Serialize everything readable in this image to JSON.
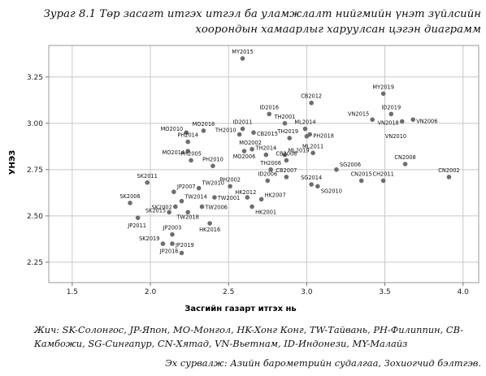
{
  "title": {
    "line1": "Зураг 8.1 Төр засагт итгэх итгэл ба уламжлалт нийгмийн үнэт зүйлсийн",
    "line2": "хоорондын хамаарлыг харуулсан цэгэн диаграмм"
  },
  "note": "Жич: SK-Солонгос, JP-Япон, MO-Монгол, HK-Хонг Конг, TW-Тайвань, PH-Филиппин, CB-Камбожи, SG-Сингапур, CN-Хятад, VN-Вьетнам, ID-Индонези, MY-Малайз",
  "source": "Эх сурвалж: Азийн барометрийн судалгаа, Зохиогчид бэлтгэв.",
  "chart_data": {
    "type": "scatter",
    "xlabel": "Засгийн газарт итгэх нь",
    "ylabel": "УНЭЗ",
    "xlim": [
      1.35,
      4.1
    ],
    "ylim": [
      2.14,
      3.42
    ],
    "xticks": [
      "1.5",
      "2.0",
      "2.5",
      "3.0",
      "3.5",
      "4.0"
    ],
    "yticks": [
      "2.25",
      "2.50",
      "2.75",
      "3.00",
      "3.25"
    ],
    "grid": true,
    "point_color": "#6e6e6e",
    "points": [
      {
        "label": "MY2015",
        "x": 2.59,
        "y": 3.35
      },
      {
        "label": "MY2019",
        "x": 3.49,
        "y": 3.16
      },
      {
        "label": "CB2012",
        "x": 3.03,
        "y": 3.11
      },
      {
        "label": "ID2016",
        "x": 2.76,
        "y": 3.05
      },
      {
        "label": "ID2019",
        "x": 3.54,
        "y": 3.05
      },
      {
        "label": "VN2015",
        "x": 3.42,
        "y": 3.02
      },
      {
        "label": "VN2018",
        "x": 3.61,
        "y": 3.01
      },
      {
        "label": "VN2006",
        "x": 3.68,
        "y": 3.02
      },
      {
        "label": "MO2018",
        "x": 2.34,
        "y": 2.96
      },
      {
        "label": "MO2010",
        "x": 2.23,
        "y": 2.95
      },
      {
        "label": "TH2010",
        "x": 2.57,
        "y": 2.94
      },
      {
        "label": "ID2011",
        "x": 2.59,
        "y": 2.97
      },
      {
        "label": "TH2001",
        "x": 2.86,
        "y": 3.0
      },
      {
        "label": "ML2014",
        "x": 2.99,
        "y": 2.97
      },
      {
        "label": "PH2014",
        "x": 2.24,
        "y": 2.9
      },
      {
        "label": "CB2015",
        "x": 2.66,
        "y": 2.95
      },
      {
        "label": "TH2019",
        "x": 2.89,
        "y": 2.92
      },
      {
        "label": "PH2018",
        "x": 3.02,
        "y": 2.94
      },
      {
        "label": "VN2010",
        "x": 3.0,
        "y": 2.93
      },
      {
        "label": "MO2002",
        "x": 2.65,
        "y": 2.86
      },
      {
        "label": "MO2014",
        "x": 2.24,
        "y": 2.85
      },
      {
        "label": "TH2014",
        "x": 2.74,
        "y": 2.83
      },
      {
        "label": "ML2019",
        "x": 2.86,
        "y": 2.83
      },
      {
        "label": "ML2011",
        "x": 3.04,
        "y": 2.84
      },
      {
        "label": "PH2005",
        "x": 2.26,
        "y": 2.8
      },
      {
        "label": "PH2010",
        "x": 2.4,
        "y": 2.77
      },
      {
        "label": "MO2006",
        "x": 2.6,
        "y": 2.85
      },
      {
        "label": "CB2008",
        "x": 2.87,
        "y": 2.8
      },
      {
        "label": "CN2008",
        "x": 3.63,
        "y": 2.78
      },
      {
        "label": "SG2006",
        "x": 3.19,
        "y": 2.75
      },
      {
        "label": "TH2006",
        "x": 2.77,
        "y": 2.75
      },
      {
        "label": "CB2007",
        "x": 2.87,
        "y": 2.71
      },
      {
        "label": "ID2006",
        "x": 2.75,
        "y": 2.69
      },
      {
        "label": "CN2015",
        "x": 3.35,
        "y": 2.69
      },
      {
        "label": "CN2002",
        "x": 3.91,
        "y": 2.71
      },
      {
        "label": "CH2011",
        "x": 3.49,
        "y": 2.69
      },
      {
        "label": "SG2014",
        "x": 3.03,
        "y": 2.67
      },
      {
        "label": "SG2010",
        "x": 3.07,
        "y": 2.66
      },
      {
        "label": "SK2011",
        "x": 1.98,
        "y": 2.68
      },
      {
        "label": "JP2007",
        "x": 2.15,
        "y": 2.63
      },
      {
        "label": "TW2010",
        "x": 2.31,
        "y": 2.65
      },
      {
        "label": "PH2002",
        "x": 2.51,
        "y": 2.66
      },
      {
        "label": "TW2001",
        "x": 2.41,
        "y": 2.6
      },
      {
        "label": "HK2012",
        "x": 2.62,
        "y": 2.6
      },
      {
        "label": "HK2007",
        "x": 2.71,
        "y": 2.59
      },
      {
        "label": "SK2006",
        "x": 1.87,
        "y": 2.57
      },
      {
        "label": "TW2014",
        "x": 2.2,
        "y": 2.58
      },
      {
        "label": "SK2002",
        "x": 2.16,
        "y": 2.55
      },
      {
        "label": "TW2006",
        "x": 2.33,
        "y": 2.55
      },
      {
        "label": "HK2001",
        "x": 2.65,
        "y": 2.55
      },
      {
        "label": "SK2015",
        "x": 2.12,
        "y": 2.52
      },
      {
        "label": "TW2018",
        "x": 2.24,
        "y": 2.52
      },
      {
        "label": "JP2011",
        "x": 1.92,
        "y": 2.49
      },
      {
        "label": "HK2016",
        "x": 2.38,
        "y": 2.46
      },
      {
        "label": "JP2003",
        "x": 2.14,
        "y": 2.4
      },
      {
        "label": "SK2019",
        "x": 2.08,
        "y": 2.35
      },
      {
        "label": "JP2019",
        "x": 2.14,
        "y": 2.35
      },
      {
        "label": "JP2016",
        "x": 2.2,
        "y": 2.3
      }
    ]
  }
}
